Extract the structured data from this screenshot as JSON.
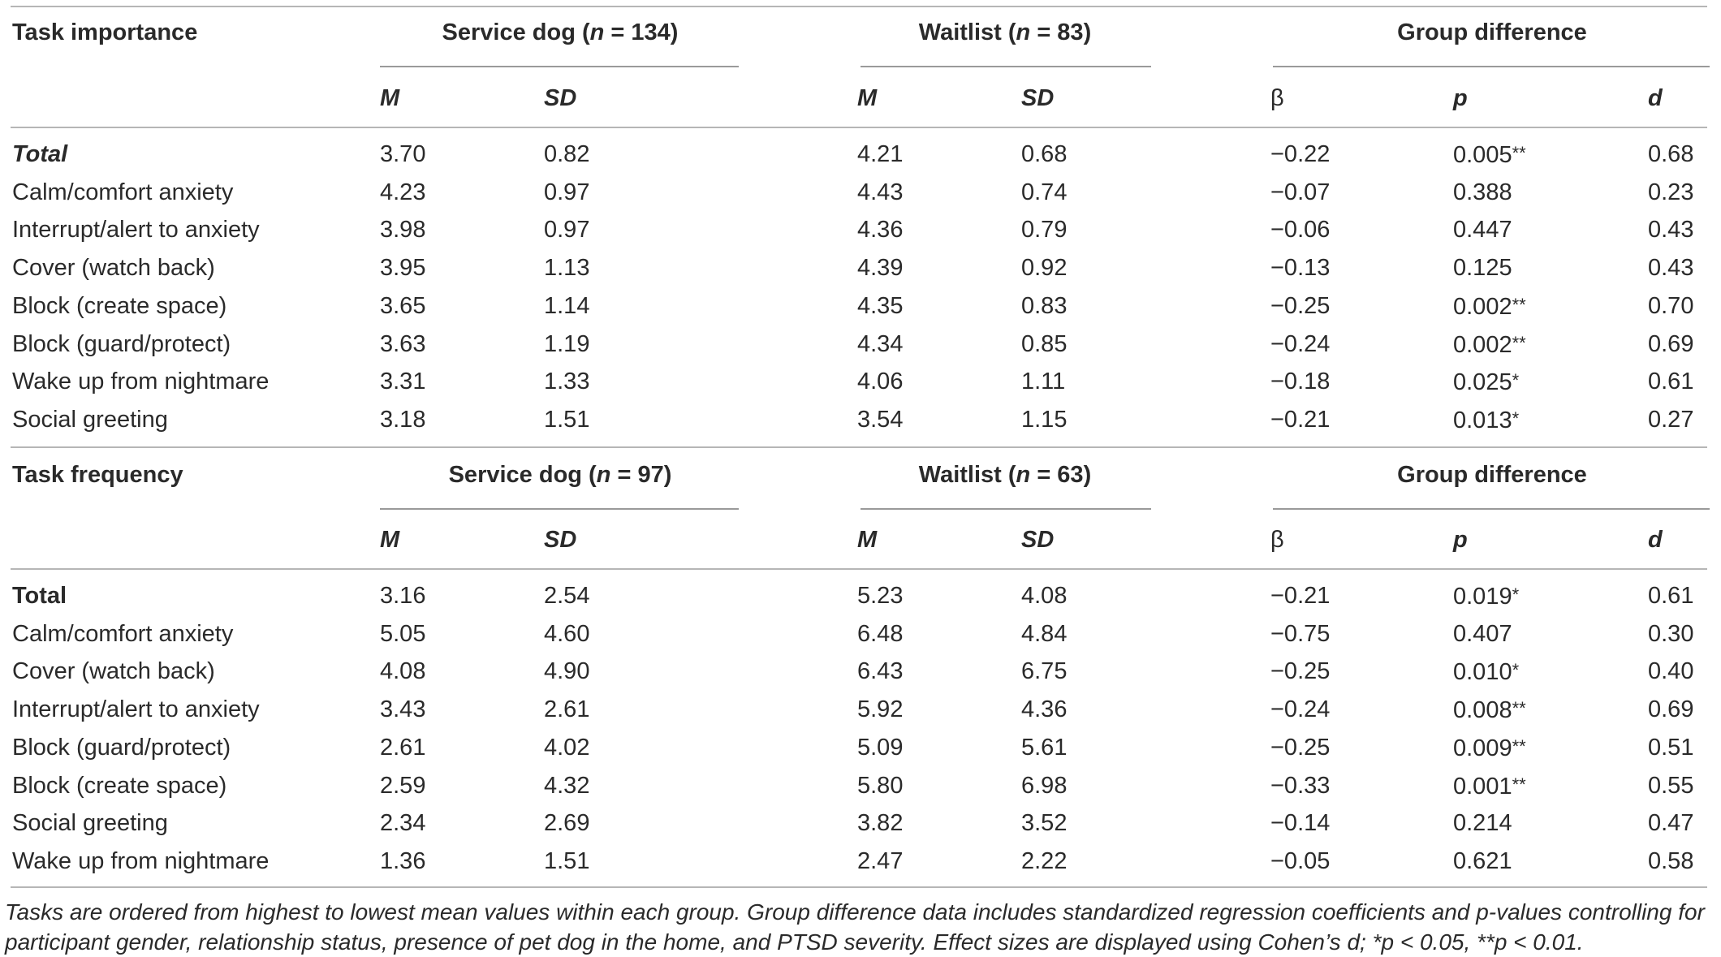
{
  "sections": [
    {
      "title": "Task importance",
      "groups": {
        "service_dog": {
          "label": "Service dog (",
          "n_var": "n",
          "n_text": " = 134)"
        },
        "waitlist": {
          "label": "Waitlist (",
          "n_var": "n",
          "n_text": " = 83)"
        },
        "difference": {
          "label": "Group difference"
        }
      },
      "subheaders": [
        "M",
        "SD",
        "M",
        "SD",
        "β",
        "p",
        "d"
      ],
      "rows": [
        {
          "task": "Total",
          "style": "bold-italic",
          "sd_m": "3.70",
          "sd_sd": "0.82",
          "wl_m": "4.21",
          "wl_sd": "0.68",
          "beta": "−0.22",
          "p": "0.005",
          "sig": "**",
          "d": "0.68"
        },
        {
          "task": "Calm/comfort anxiety",
          "style": "normal",
          "sd_m": "4.23",
          "sd_sd": "0.97",
          "wl_m": "4.43",
          "wl_sd": "0.74",
          "beta": "−0.07",
          "p": "0.388",
          "sig": "",
          "d": "0.23"
        },
        {
          "task": "Interrupt/alert to anxiety",
          "style": "normal",
          "sd_m": "3.98",
          "sd_sd": "0.97",
          "wl_m": "4.36",
          "wl_sd": "0.79",
          "beta": "−0.06",
          "p": "0.447",
          "sig": "",
          "d": "0.43"
        },
        {
          "task": "Cover (watch back)",
          "style": "normal",
          "sd_m": "3.95",
          "sd_sd": "1.13",
          "wl_m": "4.39",
          "wl_sd": "0.92",
          "beta": "−0.13",
          "p": "0.125",
          "sig": "",
          "d": "0.43"
        },
        {
          "task": "Block (create space)",
          "style": "normal",
          "sd_m": "3.65",
          "sd_sd": "1.14",
          "wl_m": "4.35",
          "wl_sd": "0.83",
          "beta": "−0.25",
          "p": "0.002",
          "sig": "**",
          "d": "0.70"
        },
        {
          "task": "Block (guard/protect)",
          "style": "normal",
          "sd_m": "3.63",
          "sd_sd": "1.19",
          "wl_m": "4.34",
          "wl_sd": "0.85",
          "beta": "−0.24",
          "p": "0.002",
          "sig": "**",
          "d": "0.69"
        },
        {
          "task": "Wake up from nightmare",
          "style": "normal",
          "sd_m": "3.31",
          "sd_sd": "1.33",
          "wl_m": "4.06",
          "wl_sd": "1.11",
          "beta": "−0.18",
          "p": "0.025",
          "sig": "*",
          "d": "0.61"
        },
        {
          "task": "Social greeting",
          "style": "normal",
          "sd_m": "3.18",
          "sd_sd": "1.51",
          "wl_m": "3.54",
          "wl_sd": "1.15",
          "beta": "−0.21",
          "p": "0.013",
          "sig": "*",
          "d": "0.27"
        }
      ]
    },
    {
      "title": "Task frequency",
      "groups": {
        "service_dog": {
          "label": "Service dog (",
          "n_var": "n",
          "n_text": " = 97)"
        },
        "waitlist": {
          "label": "Waitlist (",
          "n_var": "n",
          "n_text": " = 63)"
        },
        "difference": {
          "label": "Group difference"
        }
      },
      "subheaders": [
        "M",
        "SD",
        "M",
        "SD",
        "β",
        "p",
        "d"
      ],
      "rows": [
        {
          "task": "Total",
          "style": "bold",
          "sd_m": "3.16",
          "sd_sd": "2.54",
          "wl_m": "5.23",
          "wl_sd": "4.08",
          "beta": "−0.21",
          "p": "0.019",
          "sig": "*",
          "d": "0.61"
        },
        {
          "task": "Calm/comfort anxiety",
          "style": "normal",
          "sd_m": "5.05",
          "sd_sd": "4.60",
          "wl_m": "6.48",
          "wl_sd": "4.84",
          "beta": "−0.75",
          "p": "0.407",
          "sig": "",
          "d": "0.30"
        },
        {
          "task": "Cover (watch back)",
          "style": "normal",
          "sd_m": "4.08",
          "sd_sd": "4.90",
          "wl_m": "6.43",
          "wl_sd": "6.75",
          "beta": "−0.25",
          "p": "0.010",
          "sig": "*",
          "d": "0.40"
        },
        {
          "task": "Interrupt/alert to anxiety",
          "style": "normal",
          "sd_m": "3.43",
          "sd_sd": "2.61",
          "wl_m": "5.92",
          "wl_sd": "4.36",
          "beta": "−0.24",
          "p": "0.008",
          "sig": "**",
          "d": "0.69"
        },
        {
          "task": "Block (guard/protect)",
          "style": "normal",
          "sd_m": "2.61",
          "sd_sd": "4.02",
          "wl_m": "5.09",
          "wl_sd": "5.61",
          "beta": "−0.25",
          "p": "0.009",
          "sig": "**",
          "d": "0.51"
        },
        {
          "task": "Block (create space)",
          "style": "normal",
          "sd_m": "2.59",
          "sd_sd": "4.32",
          "wl_m": "5.80",
          "wl_sd": "6.98",
          "beta": "−0.33",
          "p": "0.001",
          "sig": "**",
          "d": "0.55"
        },
        {
          "task": "Social greeting",
          "style": "normal",
          "sd_m": "2.34",
          "sd_sd": "2.69",
          "wl_m": "3.82",
          "wl_sd": "3.52",
          "beta": "−0.14",
          "p": "0.214",
          "sig": "",
          "d": "0.47"
        },
        {
          "task": "Wake up from nightmare",
          "style": "normal",
          "sd_m": "1.36",
          "sd_sd": "1.51",
          "wl_m": "2.47",
          "wl_sd": "2.22",
          "beta": "−0.05",
          "p": "0.621",
          "sig": "",
          "d": "0.58"
        }
      ]
    }
  ],
  "footnote": "Tasks are ordered from highest to lowest mean values within each group. Group difference data includes standardized regression coefficients and p-values controlling for participant gender, relationship status, presence of pet dog in the home, and PTSD severity. Effect sizes are displayed using Cohen’s d; *p < 0.05, **p < 0.01."
}
